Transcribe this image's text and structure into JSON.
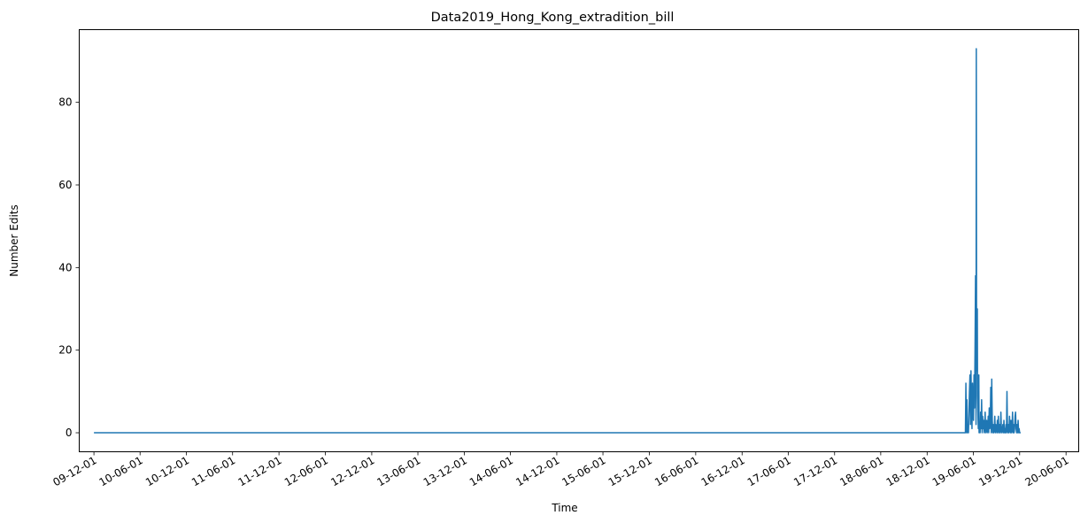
{
  "chart_data": {
    "type": "line",
    "title": "Data2019_Hong_Kong_extradition_bill",
    "xlabel": "Time",
    "ylabel": "Number Edits",
    "x_ticks": [
      "09-12-01",
      "10-06-01",
      "10-12-01",
      "11-06-01",
      "11-12-01",
      "12-06-01",
      "12-12-01",
      "13-06-01",
      "13-12-01",
      "14-06-01",
      "14-12-01",
      "15-06-01",
      "15-12-01",
      "16-06-01",
      "16-12-01",
      "17-06-01",
      "17-12-01",
      "18-06-01",
      "18-12-01",
      "19-06-01",
      "19-12-01",
      "20-06-01"
    ],
    "y_ticks": [
      0,
      20,
      40,
      60,
      80
    ],
    "xlim": [
      "2009-10-04",
      "2020-07-21"
    ],
    "ylim": [
      -4.6,
      97.6
    ],
    "grid": false,
    "color": "#1f77b4",
    "series": [
      {
        "x": [
          "2009-12-01",
          "2019-05-01",
          "2019-05-03",
          "2019-05-05",
          "2019-05-07",
          "2019-05-09",
          "2019-05-11",
          "2019-05-13",
          "2019-05-15",
          "2019-05-17",
          "2019-05-19",
          "2019-05-21",
          "2019-05-23",
          "2019-05-25",
          "2019-05-27",
          "2019-05-29",
          "2019-05-31",
          "2019-06-02",
          "2019-06-04",
          "2019-06-06",
          "2019-06-08",
          "2019-06-10",
          "2019-06-12",
          "2019-06-13",
          "2019-06-14",
          "2019-06-15",
          "2019-06-16",
          "2019-06-17",
          "2019-06-18",
          "2019-06-20",
          "2019-06-21",
          "2019-06-22",
          "2019-06-23",
          "2019-06-24",
          "2019-06-26",
          "2019-06-28",
          "2019-06-30",
          "2019-07-02",
          "2019-07-04",
          "2019-07-06",
          "2019-07-08",
          "2019-07-10",
          "2019-07-12",
          "2019-07-14",
          "2019-07-16",
          "2019-07-18",
          "2019-07-20",
          "2019-07-22",
          "2019-07-24",
          "2019-07-26",
          "2019-07-28",
          "2019-07-30",
          "2019-08-01",
          "2019-08-03",
          "2019-08-05",
          "2019-08-07",
          "2019-08-09",
          "2019-08-11",
          "2019-08-13",
          "2019-08-15",
          "2019-08-17",
          "2019-08-19",
          "2019-08-21",
          "2019-08-23",
          "2019-08-25",
          "2019-08-27",
          "2019-08-29",
          "2019-08-31",
          "2019-09-02",
          "2019-09-04",
          "2019-09-06",
          "2019-09-08",
          "2019-09-10",
          "2019-09-12",
          "2019-09-14",
          "2019-09-16",
          "2019-09-18",
          "2019-09-20",
          "2019-09-22",
          "2019-09-24",
          "2019-09-26",
          "2019-09-28",
          "2019-09-30",
          "2019-10-02",
          "2019-10-04",
          "2019-10-06",
          "2019-10-08",
          "2019-10-10",
          "2019-10-12",
          "2019-10-14",
          "2019-10-16",
          "2019-10-18",
          "2019-10-20",
          "2019-10-22",
          "2019-10-24",
          "2019-10-26",
          "2019-10-28",
          "2019-10-30",
          "2019-11-01",
          "2019-11-03",
          "2019-11-05",
          "2019-11-07",
          "2019-11-09",
          "2019-11-11",
          "2019-11-13",
          "2019-11-15",
          "2019-11-17",
          "2019-11-19",
          "2019-11-21",
          "2019-11-23",
          "2019-11-25",
          "2019-11-27",
          "2019-11-29",
          "2019-12-01",
          "2019-12-03",
          "2019-12-05"
        ],
        "y": [
          0,
          0,
          12,
          0,
          8,
          0,
          2,
          0,
          5,
          10,
          14,
          2,
          15,
          6,
          1,
          12,
          5,
          3,
          14,
          6,
          20,
          38,
          2,
          93,
          30,
          15,
          22,
          30,
          9,
          3,
          1,
          4,
          14,
          0,
          2,
          0,
          5,
          1,
          8,
          0,
          4,
          1,
          3,
          0,
          2,
          5,
          0,
          1,
          3,
          0,
          1,
          4,
          0,
          6,
          1,
          2,
          11,
          0,
          13,
          3,
          0,
          2,
          0,
          1,
          4,
          0,
          2,
          1,
          0,
          3,
          0,
          4,
          1,
          0,
          2,
          0,
          5,
          1,
          0,
          1,
          2,
          0,
          3,
          0,
          1,
          0,
          2,
          0,
          10,
          1,
          0,
          2,
          0,
          4,
          1,
          0,
          3,
          0,
          1,
          5,
          0,
          2,
          0,
          1,
          4,
          5,
          1,
          0,
          2,
          0,
          3,
          0,
          1,
          0,
          0,
          0
        ]
      }
    ]
  }
}
